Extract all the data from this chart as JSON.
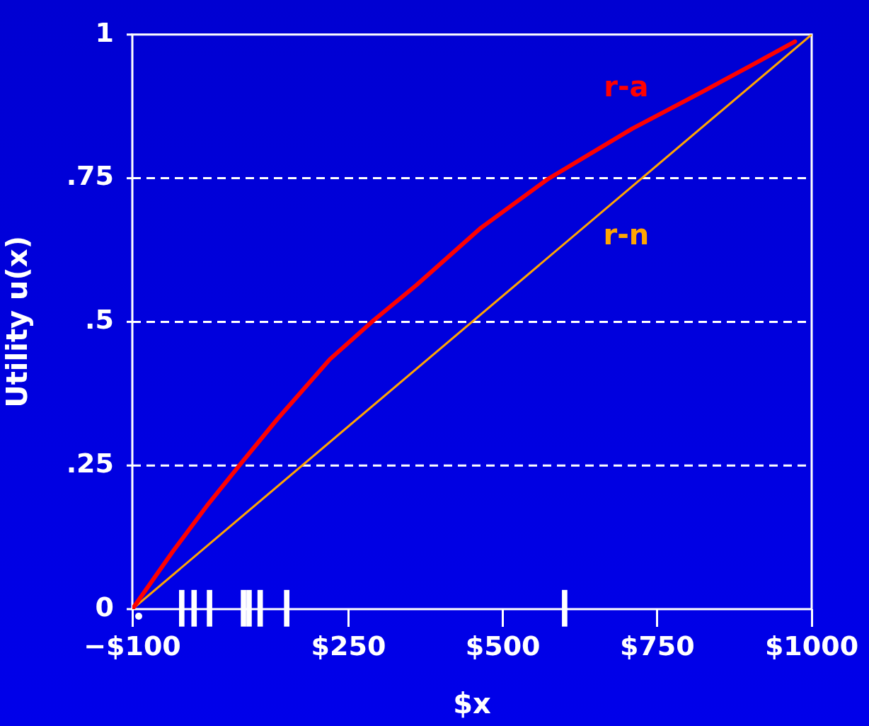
{
  "chart_data": {
    "type": "line",
    "xlabel": "$x",
    "ylabel": "Utility u(x)",
    "xlim": [
      -100,
      1000
    ],
    "ylim": [
      0,
      1
    ],
    "xticks": [
      {
        "value": -100,
        "label": "−$100"
      },
      {
        "value": 250,
        "label": "$250"
      },
      {
        "value": 500,
        "label": "$500"
      },
      {
        "value": 750,
        "label": "$750"
      },
      {
        "value": 1000,
        "label": "$1000"
      }
    ],
    "yticks": [
      0,
      {
        "value": 0.25,
        "label": ".25"
      },
      {
        "value": 0.5,
        "label": ".5"
      },
      {
        "value": 0.75,
        "label": ".75"
      },
      1
    ],
    "grid": "y",
    "legend": false,
    "marker": "none",
    "line_style": "solid",
    "series": [
      {
        "name": "r-a",
        "color": "#ff0000",
        "x": [
          -100,
          -34,
          23,
          77,
          135,
          220,
          290,
          360,
          465,
          572,
          709,
          824,
          900,
          973
        ],
        "values": [
          0,
          0.101,
          0.183,
          0.255,
          0.331,
          0.435,
          0.502,
          0.564,
          0.664,
          0.748,
          0.836,
          0.901,
          0.945,
          0.988
        ]
      },
      {
        "name": "r-n",
        "color": "#ffa500",
        "x": [
          -100,
          1000
        ],
        "values": [
          0,
          1
        ]
      },
      {
        "type": "bar",
        "color": "#ffffff",
        "x": [
          -20,
          0,
          25,
          80,
          89,
          107,
          150,
          600
        ],
        "base": [
          -0.03,
          -0.03,
          -0.03,
          -0.03,
          -0.03,
          -0.03,
          -0.03,
          -0.03
        ],
        "values": [
          0.063,
          0.063,
          0.063,
          0.063,
          0.063,
          0.063,
          0.063,
          0.063
        ]
      }
    ]
  }
}
